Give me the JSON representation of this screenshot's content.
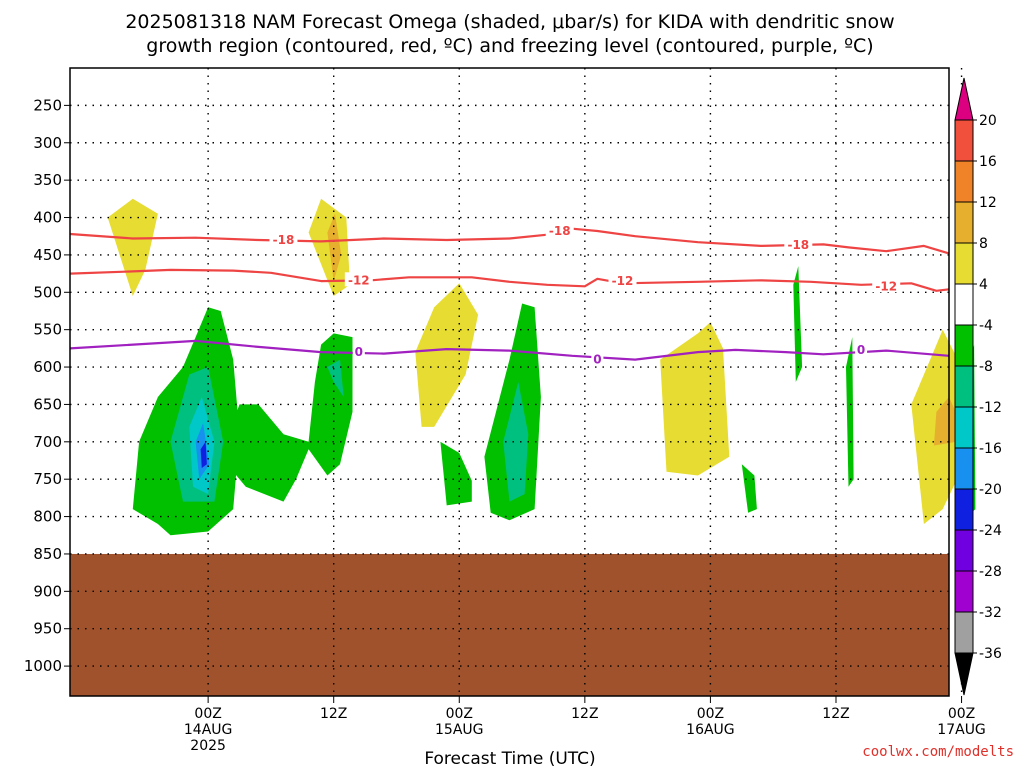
{
  "chart_data": {
    "type": "heatmap",
    "title_lines": [
      "2025081318 NAM Forecast Omega (shaded, μbar/s) for KIDA with dendritic snow",
      "growth region (contoured, red, ºC) and freezing level (contoured, purple, ºC)"
    ],
    "xlabel": "Forecast Time (UTC)",
    "ylabel": "",
    "y_axis": {
      "scale": "pressure (reversed)",
      "ticks": [
        250,
        300,
        350,
        400,
        450,
        500,
        550,
        600,
        650,
        700,
        750,
        800,
        850,
        900,
        950,
        1000
      ],
      "range_hpa": [
        200,
        1040
      ]
    },
    "x_axis": {
      "range_forecast_hours": [
        -5,
        65
      ],
      "ticks": [
        {
          "hour": 6,
          "lines": [
            "00Z",
            "14AUG",
            "2025"
          ]
        },
        {
          "hour": 16,
          "lines": [
            "12Z"
          ]
        },
        {
          "hour": 26,
          "lines": [
            "00Z",
            "15AUG"
          ]
        },
        {
          "hour": 36,
          "lines": [
            "12Z"
          ]
        },
        {
          "hour": 46,
          "lines": [
            "00Z",
            "16AUG"
          ]
        },
        {
          "hour": 56,
          "lines": [
            "12Z"
          ]
        },
        {
          "hour": 66,
          "lines": [
            "00Z",
            "17AUG"
          ]
        }
      ]
    },
    "grid": true,
    "terrain_below_hpa": 850,
    "colorbar": {
      "levels": [
        -36,
        -32,
        -28,
        -24,
        -20,
        -16,
        -12,
        -8,
        -4,
        4,
        8,
        12,
        16,
        20
      ],
      "colors": [
        "#000000",
        "#a0a0a0",
        "#a000d0",
        "#7000e0",
        "#1020e0",
        "#1890f0",
        "#00c8c8",
        "#00c080",
        "#00c000",
        "#ffffff",
        "#e6dc32",
        "#e6af2d",
        "#f08228",
        "#f0503c",
        "#dc0080"
      ]
    },
    "contours": [
      {
        "name": "-18",
        "color": "#ee4444",
        "points": [
          [
            -5,
            422
          ],
          [
            0,
            428
          ],
          [
            5,
            427
          ],
          [
            10,
            430
          ],
          [
            15,
            432
          ],
          [
            20,
            428
          ],
          [
            25,
            430
          ],
          [
            30,
            428
          ],
          [
            33,
            423
          ],
          [
            35,
            415
          ],
          [
            37,
            418
          ],
          [
            40,
            425
          ],
          [
            45,
            433
          ],
          [
            50,
            438
          ],
          [
            55,
            436
          ],
          [
            57,
            440
          ],
          [
            60,
            445
          ],
          [
            63,
            438
          ],
          [
            65,
            448
          ]
        ]
      },
      {
        "name": "-12",
        "color": "#ee4444",
        "points": [
          [
            -5,
            475
          ],
          [
            0,
            472
          ],
          [
            3,
            470
          ],
          [
            8,
            471
          ],
          [
            11,
            474
          ],
          [
            15,
            485
          ],
          [
            19,
            484
          ],
          [
            22,
            480
          ],
          [
            27,
            480
          ],
          [
            30,
            486
          ],
          [
            33,
            490
          ],
          [
            36,
            492
          ],
          [
            37,
            482
          ],
          [
            39,
            488
          ],
          [
            45,
            486
          ],
          [
            50,
            484
          ],
          [
            54,
            486
          ],
          [
            58,
            490
          ],
          [
            62,
            488
          ],
          [
            64,
            498
          ],
          [
            65,
            496
          ]
        ]
      },
      {
        "name": "0",
        "color": "#a020c0",
        "points": [
          [
            -5,
            575
          ],
          [
            5,
            565
          ],
          [
            10,
            573
          ],
          [
            15,
            580
          ],
          [
            20,
            582
          ],
          [
            25,
            576
          ],
          [
            30,
            578
          ],
          [
            35,
            585
          ],
          [
            40,
            590
          ],
          [
            45,
            580
          ],
          [
            48,
            577
          ],
          [
            52,
            580
          ],
          [
            55,
            583
          ],
          [
            60,
            578
          ],
          [
            65,
            585
          ]
        ]
      }
    ],
    "contour_labels": [
      {
        "text": "-18",
        "x": 12,
        "y": 430
      },
      {
        "text": "-18",
        "x": 34,
        "y": 418
      },
      {
        "text": "-18",
        "x": 53,
        "y": 437
      },
      {
        "text": "-12",
        "x": 18,
        "y": 484
      },
      {
        "text": "-12",
        "x": 39,
        "y": 485
      },
      {
        "text": "-12",
        "x": 60,
        "y": 492
      },
      {
        "text": "0",
        "x": 18,
        "y": 580
      },
      {
        "text": "0",
        "x": 37,
        "y": 590
      },
      {
        "text": "0",
        "x": 58,
        "y": 577
      }
    ],
    "shaded_regions": [
      {
        "level": 4,
        "points": [
          [
            0,
            505
          ],
          [
            -2,
            400
          ],
          [
            0,
            375
          ],
          [
            2,
            395
          ],
          [
            1,
            470
          ]
        ]
      },
      {
        "level": 4,
        "points": [
          [
            16,
            505
          ],
          [
            14,
            420
          ],
          [
            15,
            375
          ],
          [
            17,
            400
          ],
          [
            17.3,
            490
          ]
        ]
      },
      {
        "level": 4,
        "points": [
          [
            23,
            680
          ],
          [
            22.5,
            580
          ],
          [
            24,
            520
          ],
          [
            26,
            488
          ],
          [
            27.5,
            530
          ],
          [
            26.5,
            610
          ],
          [
            24,
            680
          ]
        ]
      },
      {
        "level": 4,
        "points": [
          [
            42.5,
            740
          ],
          [
            42,
            590
          ],
          [
            45,
            555
          ],
          [
            46,
            540
          ],
          [
            47,
            575
          ],
          [
            47.5,
            720
          ],
          [
            45,
            745
          ]
        ]
      },
      {
        "level": 4,
        "points": [
          [
            63,
            810
          ],
          [
            62,
            650
          ],
          [
            63.5,
            590
          ],
          [
            64.5,
            550
          ],
          [
            66,
            600
          ],
          [
            66.5,
            720
          ],
          [
            64.5,
            790
          ]
        ]
      },
      {
        "level": 8,
        "points": [
          [
            63.8,
            705
          ],
          [
            64,
            660
          ],
          [
            65,
            640
          ],
          [
            65.8,
            670
          ],
          [
            65.6,
            700
          ]
        ]
      },
      {
        "level": 8,
        "points": [
          [
            16,
            485
          ],
          [
            15.5,
            420
          ],
          [
            16.1,
            395
          ],
          [
            16.6,
            450
          ]
        ]
      },
      {
        "level": -4,
        "points": [
          [
            2,
            810
          ],
          [
            0,
            790
          ],
          [
            0.5,
            700
          ],
          [
            2,
            640
          ],
          [
            4,
            600
          ],
          [
            5,
            560
          ],
          [
            6,
            520
          ],
          [
            7,
            525
          ],
          [
            8,
            590
          ],
          [
            8.5,
            690
          ],
          [
            8,
            790
          ],
          [
            6,
            820
          ],
          [
            3,
            825
          ]
        ]
      },
      {
        "level": -4,
        "points": [
          [
            9,
            760
          ],
          [
            7,
            720
          ],
          [
            8.5,
            650
          ],
          [
            10,
            650
          ],
          [
            12,
            690
          ],
          [
            14,
            700
          ],
          [
            14.5,
            620
          ],
          [
            15,
            570
          ],
          [
            16,
            555
          ],
          [
            17.5,
            560
          ],
          [
            17.5,
            660
          ],
          [
            16.5,
            730
          ],
          [
            15.5,
            745
          ],
          [
            14,
            710
          ],
          [
            13,
            750
          ],
          [
            12,
            780
          ]
        ]
      },
      {
        "level": -4,
        "points": [
          [
            25,
            785
          ],
          [
            24.5,
            700
          ],
          [
            26,
            715
          ],
          [
            27,
            752
          ],
          [
            27,
            780
          ]
        ]
      },
      {
        "level": -4,
        "points": [
          [
            28.5,
            795
          ],
          [
            28,
            720
          ],
          [
            30,
            590
          ],
          [
            31,
            515
          ],
          [
            32,
            520
          ],
          [
            32.5,
            640
          ],
          [
            32,
            790
          ],
          [
            30,
            805
          ]
        ]
      },
      {
        "level": -4,
        "points": [
          [
            49,
            795
          ],
          [
            48.5,
            730
          ],
          [
            49.5,
            745
          ],
          [
            49.7,
            790
          ]
        ]
      },
      {
        "level": -4,
        "points": [
          [
            52.8,
            620
          ],
          [
            52.6,
            490
          ],
          [
            53,
            465
          ],
          [
            53.3,
            600
          ]
        ]
      },
      {
        "level": -4,
        "points": [
          [
            57,
            760
          ],
          [
            56.8,
            600
          ],
          [
            57.3,
            560
          ],
          [
            57.4,
            750
          ]
        ]
      },
      {
        "level": -4,
        "points": [
          [
            66.8,
            795
          ],
          [
            66.6,
            600
          ],
          [
            67,
            570
          ],
          [
            67.1,
            790
          ]
        ]
      },
      {
        "level": -8,
        "points": [
          [
            4,
            780
          ],
          [
            3,
            700
          ],
          [
            4.5,
            610
          ],
          [
            6,
            600
          ],
          [
            7.2,
            700
          ],
          [
            6.5,
            780
          ]
        ]
      },
      {
        "level": -8,
        "points": [
          [
            30,
            780
          ],
          [
            29.5,
            700
          ],
          [
            30.7,
            620
          ],
          [
            31.5,
            690
          ],
          [
            31.2,
            770
          ]
        ]
      },
      {
        "level": -8,
        "points": [
          [
            16,
            620
          ],
          [
            15.5,
            600
          ],
          [
            16.5,
            590
          ],
          [
            16.8,
            640
          ]
        ]
      },
      {
        "level": -12,
        "points": [
          [
            4.8,
            760
          ],
          [
            4.5,
            680
          ],
          [
            5.5,
            640
          ],
          [
            6.5,
            700
          ],
          [
            6,
            770
          ]
        ]
      },
      {
        "level": -16,
        "points": [
          [
            5.3,
            750
          ],
          [
            5,
            700
          ],
          [
            5.6,
            675
          ],
          [
            6.1,
            730
          ]
        ]
      },
      {
        "level": -20,
        "points": [
          [
            5.5,
            735
          ],
          [
            5.4,
            710
          ],
          [
            5.8,
            700
          ],
          [
            5.9,
            730
          ]
        ]
      }
    ]
  },
  "credit": "coolwx.com/modelts"
}
